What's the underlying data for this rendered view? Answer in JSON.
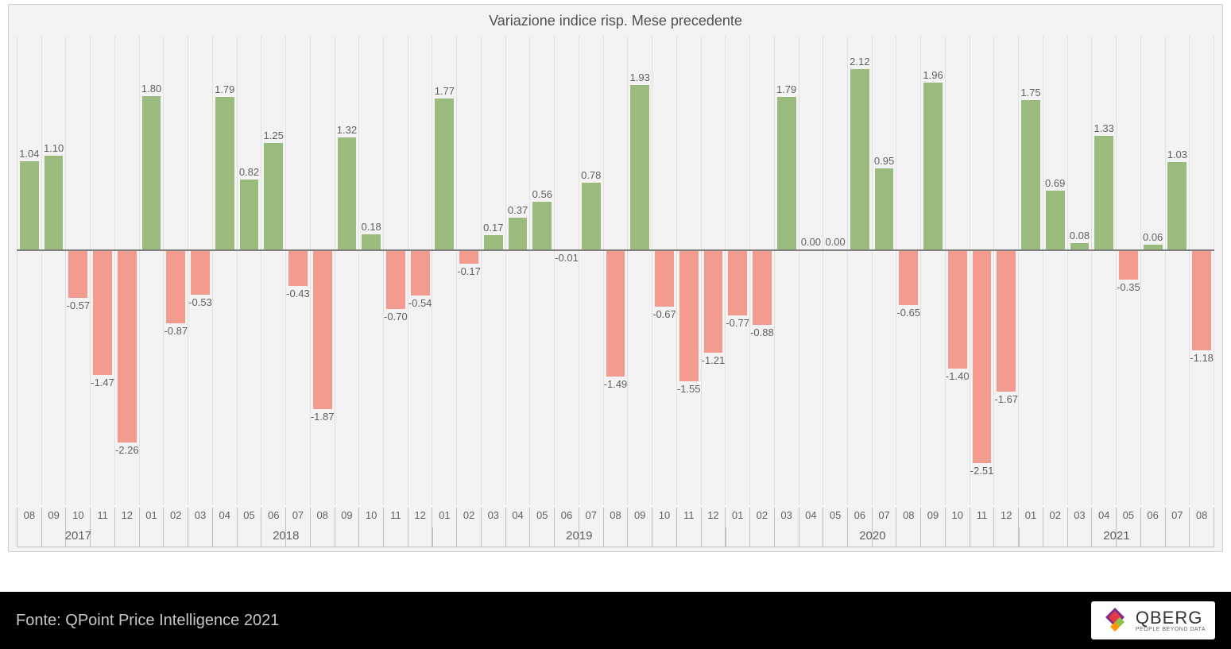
{
  "chart": {
    "type": "bar",
    "title": "Variazione indice risp. Mese precedente",
    "title_fontsize": 18,
    "title_color": "#505050",
    "background_color": "#f3f3f3",
    "plot_border_color": "#d0d0d0",
    "grid_color": "#e0e0e0",
    "zero_line_color": "#808080",
    "positive_color": "#9bbb7e",
    "negative_color": "#f29a8e",
    "label_fontsize": 13,
    "label_color": "#606060",
    "axis_fontsize": 13,
    "axis_color": "#606060",
    "ylim": [
      -3.0,
      2.5
    ],
    "zero_position_pct": 45.45,
    "bar_width_pct": 80,
    "years": [
      {
        "label": "2017",
        "span": 5
      },
      {
        "label": "2018",
        "span": 12
      },
      {
        "label": "2019",
        "span": 12
      },
      {
        "label": "2020",
        "span": 12
      },
      {
        "label": "2021",
        "span": 8
      }
    ],
    "data": [
      {
        "month": "08",
        "value": 1.04
      },
      {
        "month": "09",
        "value": 1.1
      },
      {
        "month": "10",
        "value": -0.57
      },
      {
        "month": "11",
        "value": -1.47
      },
      {
        "month": "12",
        "value": -2.26
      },
      {
        "month": "01",
        "value": 1.8
      },
      {
        "month": "02",
        "value": -0.87
      },
      {
        "month": "03",
        "value": -0.53
      },
      {
        "month": "04",
        "value": 1.79
      },
      {
        "month": "05",
        "value": 0.82
      },
      {
        "month": "06",
        "value": 1.25
      },
      {
        "month": "07",
        "value": -0.43
      },
      {
        "month": "08",
        "value": -1.87
      },
      {
        "month": "09",
        "value": 1.32
      },
      {
        "month": "10",
        "value": 0.18
      },
      {
        "month": "11",
        "value": -0.7
      },
      {
        "month": "12",
        "value": -0.54
      },
      {
        "month": "01",
        "value": 1.77
      },
      {
        "month": "02",
        "value": -0.17
      },
      {
        "month": "03",
        "value": 0.17
      },
      {
        "month": "04",
        "value": 0.37
      },
      {
        "month": "05",
        "value": 0.56
      },
      {
        "month": "06",
        "value": -0.01
      },
      {
        "month": "07",
        "value": 0.78
      },
      {
        "month": "08",
        "value": -1.49
      },
      {
        "month": "09",
        "value": 1.93
      },
      {
        "month": "10",
        "value": -0.67
      },
      {
        "month": "11",
        "value": -1.55
      },
      {
        "month": "12",
        "value": -1.21
      },
      {
        "month": "01",
        "value": -0.77
      },
      {
        "month": "02",
        "value": -0.88
      },
      {
        "month": "03",
        "value": 1.79
      },
      {
        "month": "04",
        "value": 0.0
      },
      {
        "month": "05",
        "value": 0.0
      },
      {
        "month": "06",
        "value": 2.12
      },
      {
        "month": "07",
        "value": 0.95
      },
      {
        "month": "08",
        "value": -0.65
      },
      {
        "month": "09",
        "value": 1.96
      },
      {
        "month": "10",
        "value": -1.4
      },
      {
        "month": "11",
        "value": -2.51
      },
      {
        "month": "12",
        "value": -1.67
      },
      {
        "month": "01",
        "value": 1.75
      },
      {
        "month": "02",
        "value": 0.69
      },
      {
        "month": "03",
        "value": 0.08
      },
      {
        "month": "04",
        "value": 1.33
      },
      {
        "month": "05",
        "value": -0.35
      },
      {
        "month": "06",
        "value": 0.06
      },
      {
        "month": "07",
        "value": 1.03
      },
      {
        "month": "08",
        "value": -1.18
      }
    ]
  },
  "footer": {
    "source_text": "Fonte: QPoint Price Intelligence 2021",
    "background_color": "#000000",
    "text_color": "#c8c8c8",
    "fontsize": 20
  },
  "logo": {
    "name": "QBERG",
    "tagline": "PEOPLE BEYOND DATA",
    "diamond_colors": [
      "#7b2d8e",
      "#e63946",
      "#8bc34a",
      "#ff9800"
    ],
    "background_color": "#ffffff"
  }
}
